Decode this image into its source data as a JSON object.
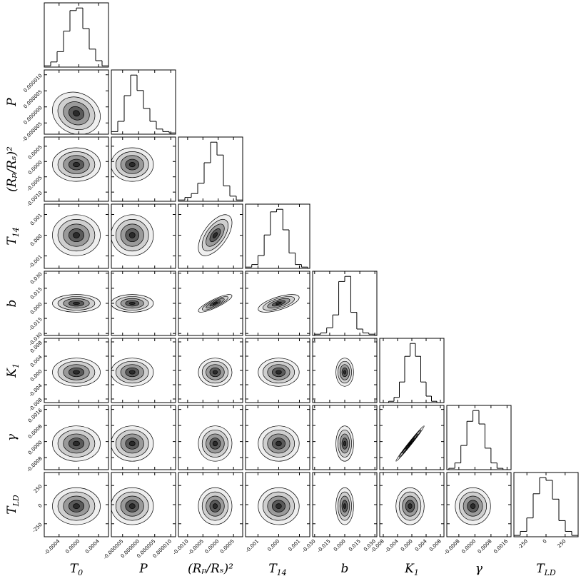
{
  "chart_data": {
    "type": "corner",
    "params": [
      {
        "name": {
          "text": "T",
          "sub": "0"
        },
        "lim": [
          -0.0007,
          0.0006
        ],
        "ticks": [
          {
            "value": -0.0004,
            "label": "-0.0004"
          },
          {
            "value": 0,
            "label": "0.0000"
          },
          {
            "value": 0.0004,
            "label": "0.0004"
          }
        ],
        "mean": -5e-05,
        "sd": 0.00022,
        "bins": [
          -0.0007,
          -0.00057,
          -0.00044,
          -0.00031,
          -0.00018,
          -5e-05,
          8e-05,
          0.00021,
          0.00034,
          0.00047,
          0.0006
        ],
        "counts": [
          1,
          4,
          12,
          28,
          44,
          46,
          30,
          14,
          5,
          1
        ]
      },
      {
        "name": {
          "text": "P"
        },
        "lim": [
          -8.5e-06,
          1.15e-05
        ],
        "ticks": [
          {
            "value": -5e-06,
            "label": "-0.000005"
          },
          {
            "value": 0,
            "label": "0.000000"
          },
          {
            "value": 5e-06,
            "label": "0.000005"
          },
          {
            "value": 1e-05,
            "label": "0.000010"
          }
        ],
        "mean": -2e-06,
        "sd": 3e-06,
        "bins": [
          -8.5e-06,
          -6.5e-06,
          -4.5e-06,
          -2.5e-06,
          -5e-07,
          1.5e-06,
          3.5e-06,
          5.5e-06,
          7.5e-06,
          9.5e-06,
          1.15e-05
        ],
        "counts": [
          2,
          10,
          30,
          46,
          34,
          20,
          10,
          4,
          2,
          1
        ]
      },
      {
        "name": {
          "text": "(Rₚ/Rₛ)²"
        },
        "lim": [
          -0.0013,
          0.0008
        ],
        "ticks": [
          {
            "value": -0.001,
            "label": "-0.0010"
          },
          {
            "value": -0.0005,
            "label": "-0.0005"
          },
          {
            "value": 0,
            "label": "0.0000"
          },
          {
            "value": 0.0005,
            "label": "0.0005"
          }
        ],
        "mean": -0.0001,
        "sd": 0.00025,
        "bins": [
          -0.0013,
          -0.00109,
          -0.00088,
          -0.00067,
          -0.00046,
          -0.00025,
          -4e-05,
          0.00017,
          0.00038,
          0.00059,
          0.0008
        ],
        "counts": [
          1,
          3,
          6,
          14,
          30,
          46,
          36,
          12,
          4,
          1
        ]
      },
      {
        "name": {
          "text": "T",
          "sub": "14"
        },
        "lim": [
          -0.0016,
          0.0015
        ],
        "ticks": [
          {
            "value": -0.001,
            "label": "-0.001"
          },
          {
            "value": 0,
            "label": "0.000"
          },
          {
            "value": 0.001,
            "label": "0.001"
          }
        ],
        "mean": 0,
        "sd": 0.00045,
        "bins": [
          -0.0016,
          -0.0013,
          -0.001,
          -0.0007,
          -0.0004,
          -0.0001,
          0.0002,
          0.0005,
          0.0008,
          0.0011,
          0.0014
        ],
        "counts": [
          1,
          3,
          10,
          26,
          44,
          46,
          30,
          12,
          3,
          1
        ]
      },
      {
        "name": {
          "text": "b"
        },
        "lim": [
          -0.032,
          0.032
        ],
        "ticks": [
          {
            "value": -0.03,
            "label": "-0.030"
          },
          {
            "value": -0.015,
            "label": "-0.015"
          },
          {
            "value": 0,
            "label": "0.000"
          },
          {
            "value": 0.015,
            "label": "0.015"
          },
          {
            "value": 0.03,
            "label": "0.030"
          }
        ],
        "mean": 0,
        "sd": 0.004,
        "bins": [
          -0.03,
          -0.024,
          -0.018,
          -0.012,
          -0.006,
          0,
          0.006,
          0.012,
          0.018,
          0.024,
          0.03
        ],
        "counts": [
          1,
          2,
          6,
          16,
          42,
          46,
          18,
          5,
          2,
          1
        ]
      },
      {
        "name": {
          "text": "K",
          "sub": "1"
        },
        "lim": [
          -0.009,
          0.009
        ],
        "ticks": [
          {
            "value": -0.008,
            "label": "-0.008"
          },
          {
            "value": -0.004,
            "label": "-0.004"
          },
          {
            "value": 0,
            "label": "0.000"
          },
          {
            "value": 0.004,
            "label": "0.004"
          },
          {
            "value": 0.008,
            "label": "0.008"
          }
        ],
        "mean": -0.0005,
        "sd": 0.0018,
        "bins": [
          -0.0065,
          -0.005,
          -0.0035,
          -0.002,
          -0.0005,
          0.001,
          0.0025,
          0.004,
          0.0055,
          0.007,
          0.0085
        ],
        "counts": [
          1,
          4,
          16,
          36,
          46,
          36,
          16,
          5,
          1,
          0
        ]
      },
      {
        "name": {
          "text": "γ"
        },
        "lim": [
          -0.0014,
          0.0018
        ],
        "ticks": [
          {
            "value": -0.0008,
            "label": "-0.0008"
          },
          {
            "value": 0,
            "label": "0.0000"
          },
          {
            "value": 0.0008,
            "label": "0.0008"
          },
          {
            "value": 0.0016,
            "label": "0.0016"
          }
        ],
        "mean": -0.0001,
        "sd": 0.0004,
        "bins": [
          -0.0013,
          -0.001,
          -0.0007,
          -0.0004,
          -0.0001,
          0.0002,
          0.0005,
          0.0008,
          0.0011,
          0.0014,
          0.0017
        ],
        "counts": [
          1,
          5,
          18,
          36,
          44,
          34,
          16,
          5,
          1,
          0
        ]
      },
      {
        "name": {
          "text": "T",
          "sub": "LD"
        },
        "lim": [
          -420,
          420
        ],
        "ticks": [
          -250,
          0,
          250
        ],
        "mean": -20,
        "sd": 110,
        "bins": [
          -420,
          -336,
          -252,
          -168,
          -84,
          0,
          84,
          168,
          252,
          336,
          420
        ],
        "counts": [
          1,
          4,
          14,
          32,
          44,
          42,
          28,
          12,
          4,
          1
        ]
      }
    ],
    "correlations": [
      [],
      [
        -0.15
      ],
      [
        0,
        0
      ],
      [
        0,
        0,
        0.6
      ],
      [
        0,
        0,
        0.85,
        0.65
      ],
      [
        0,
        0,
        0,
        0,
        0
      ],
      [
        0,
        0,
        0,
        0,
        0,
        0.99
      ],
      [
        0,
        0,
        0,
        0,
        0,
        0,
        0
      ]
    ]
  }
}
